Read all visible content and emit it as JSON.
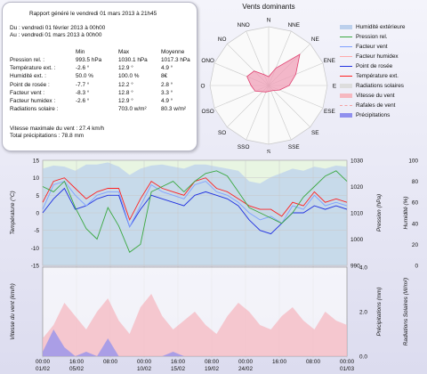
{
  "report": {
    "title": "Rapport généré le vendredi 01 mars 2013 à 21h45",
    "from": "Du : vendredi 01 février 2013 à 00h00",
    "to": "Au : vendredi 01 mars 2013 à 00h00"
  },
  "stats": {
    "headers": [
      "Min",
      "Max",
      "Moyenne"
    ],
    "rows": [
      {
        "label": "Pression rel. :",
        "min": "993.5 hPa",
        "max": "1030.1 hPa",
        "avg": "1017.3 hPa"
      },
      {
        "label": "Température ext. :",
        "min": "-2.6 °",
        "max": "12.9 °",
        "avg": "4.9 °"
      },
      {
        "label": "Humidité ext. :",
        "min": "50.0 %",
        "max": "100.0 %",
        "avg": "8€"
      },
      {
        "label": "Point de rosée :",
        "min": "-7.7 °",
        "max": "12.2 °",
        "avg": "2.8 °"
      },
      {
        "label": "Facteur vent :",
        "min": "-8.3 °",
        "max": "12.8 °",
        "avg": "3.3 °"
      },
      {
        "label": "Facteur humidex :",
        "min": "-2.6 °",
        "max": "12.9 °",
        "avg": "4.9 °"
      },
      {
        "label": "Radiations solaire :",
        "min": "",
        "max": "703.0 w/m²",
        "avg": "80.3 w/m²"
      }
    ],
    "wind_max": "Vitesse maximale du vent : 27.4 km/h",
    "precip_total": "Total précipitations : 78.8 mm"
  },
  "wind_rose": {
    "title": "Vents dominants",
    "directions": [
      "N",
      "NNE",
      "NE",
      "ENE",
      "E",
      "ESE",
      "SE",
      "SSE",
      "S",
      "SSO",
      "SO",
      "OSO",
      "O",
      "ONO",
      "NO",
      "NNO"
    ],
    "values": [
      0.15,
      0.32,
      0.75,
      0.5,
      0.35,
      0.2,
      0.12,
      0.1,
      0.1,
      0.12,
      0.15,
      0.25,
      0.3,
      0.4,
      0.35,
      0.2
    ],
    "ring_color": "#c8c8c8",
    "fill_color": "#f0a0b8",
    "stroke_color": "#e04070"
  },
  "legend": [
    {
      "label": "Humidité extérieure",
      "color": "#bcd0ec",
      "type": "fill"
    },
    {
      "label": "Pression rel.",
      "color": "#3aa840",
      "type": "line"
    },
    {
      "label": "Facteur vent",
      "color": "#7fa0ff",
      "type": "line"
    },
    {
      "label": "Facteur humidex",
      "color": "#ffaaaa",
      "type": "line"
    },
    {
      "label": "Point de rosée",
      "color": "#2030e0",
      "type": "line"
    },
    {
      "label": "Température ext.",
      "color": "#ff2020",
      "type": "line"
    },
    {
      "label": "Radiations solaires",
      "color": "#dddddd",
      "type": "fill"
    },
    {
      "label": "Vitesse du vent",
      "color": "#f6b8c0",
      "type": "fill"
    },
    {
      "label": "Rafales de vent",
      "color": "#f4a0a0",
      "type": "dash"
    },
    {
      "label": "Précipitations",
      "color": "#9090ee",
      "type": "fill"
    }
  ],
  "chart_data": [
    {
      "type": "line",
      "title": "",
      "ylabel": "Température (°C)",
      "ylabel_right_1": "Pression (hPa)",
      "ylabel_right_2": "Humidité (%)",
      "ylim": [
        -15,
        15
      ],
      "ylim_right_1": [
        990,
        1030
      ],
      "ylim_right_2": [
        0,
        100
      ],
      "y_ticks": [
        "15",
        "10",
        "5",
        "0",
        "-5",
        "-10",
        "-15"
      ],
      "y_ticks_right_1": [
        "1030",
        "1020",
        "1010",
        "1000",
        "990"
      ],
      "y_ticks_right_2": [
        "100",
        "80",
        "60",
        "40",
        "20",
        "0"
      ],
      "x": [
        0,
        1,
        2,
        3,
        4,
        5,
        6,
        7,
        8,
        9,
        10,
        11,
        12,
        13,
        14,
        15,
        16,
        17,
        18,
        19,
        20,
        21,
        22,
        23,
        24,
        25,
        26,
        27,
        28
      ],
      "series": [
        {
          "name": "Température ext.",
          "color": "#ff2020",
          "values": [
            3,
            9,
            10,
            7,
            4,
            6,
            7,
            7,
            -2,
            4,
            9,
            7,
            6,
            5,
            9,
            10,
            7,
            6,
            4,
            2,
            1,
            1,
            -1,
            3,
            2,
            6,
            3,
            4,
            3
          ]
        },
        {
          "name": "Point de rosée",
          "color": "#2030e0",
          "values": [
            0,
            4,
            7,
            1,
            2,
            4,
            5,
            5,
            -4,
            1,
            5,
            4,
            3,
            2,
            5,
            6,
            5,
            4,
            2,
            -2,
            -5,
            -6,
            -3,
            0,
            0,
            2,
            1,
            2,
            1
          ]
        },
        {
          "name": "Facteur vent",
          "color": "#7fa0ff",
          "values": [
            1,
            8,
            9,
            5,
            2,
            5,
            6,
            6,
            -4,
            2,
            8,
            6,
            5,
            4,
            8,
            9,
            6,
            5,
            3,
            0,
            -2,
            -1,
            -3,
            2,
            1,
            5,
            2,
            3,
            2
          ]
        },
        {
          "name": "Pression rel.",
          "color": "#3aa840",
          "axis": "right_1",
          "values": [
            1020,
            1018,
            1022,
            1012,
            1004,
            1000,
            1012,
            1005,
            995,
            998,
            1018,
            1020,
            1022,
            1018,
            1022,
            1025,
            1026,
            1024,
            1018,
            1012,
            1010,
            1008,
            1006,
            1010,
            1016,
            1020,
            1024,
            1026,
            1022
          ]
        },
        {
          "name": "Humidité extérieure",
          "color": "#bcd0ec",
          "axis": "right_2",
          "values": [
            92,
            95,
            94,
            90,
            96,
            96,
            98,
            94,
            86,
            92,
            95,
            96,
            94,
            92,
            96,
            96,
            94,
            92,
            90,
            80,
            78,
            84,
            88,
            92,
            90,
            94,
            92,
            95,
            94
          ]
        }
      ]
    },
    {
      "type": "area",
      "title": "",
      "ylabel": "Vitesse du vent (km/h)",
      "ylabel_right_1": "Précipitations (mm)",
      "ylabel_right_2": "Radiations Solaires (W/m²)",
      "y_ticks_right_1": [
        "4.0",
        "2.0",
        "0.0"
      ],
      "x_tick_labels": [
        "00:00",
        "16:00",
        "08:00",
        "00:00",
        "16:00",
        "08:00",
        "00:00",
        "16:00",
        "08:00",
        "00:00"
      ],
      "x_date_labels": [
        "01/02",
        "05/02",
        "",
        "10/02",
        "15/02",
        "19/02",
        "24/02",
        "",
        "",
        "01/03"
      ],
      "series": [
        {
          "name": "Vitesse du vent",
          "color": "#f6b8c0",
          "values": [
            20,
            35,
            60,
            45,
            30,
            50,
            65,
            40,
            25,
            55,
            70,
            45,
            30,
            40,
            50,
            35,
            25,
            45,
            60,
            50,
            35,
            30,
            45,
            55,
            40,
            30,
            50,
            40,
            35
          ]
        },
        {
          "name": "Précipitations",
          "color": "#9090ee",
          "values": [
            5,
            30,
            10,
            0,
            5,
            0,
            20,
            0,
            0,
            0,
            0,
            0,
            5,
            0,
            0,
            0,
            0,
            0,
            0,
            0,
            0,
            0,
            0,
            0,
            0,
            0,
            0,
            0,
            0
          ]
        }
      ]
    }
  ]
}
